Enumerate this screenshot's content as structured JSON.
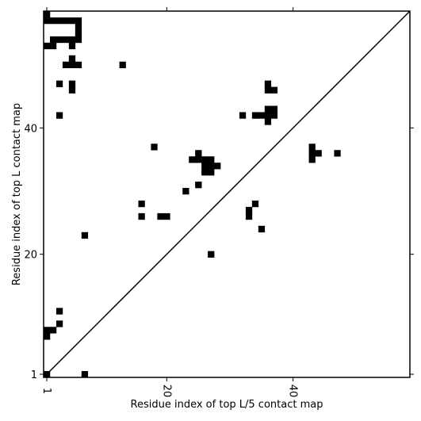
{
  "chart_data": {
    "type": "heatmap",
    "title": "",
    "xlabel": "Residue index of top L/5 contact map",
    "ylabel": "Residue index of top L contact map",
    "xlim": [
      0.5,
      58.5
    ],
    "ylim": [
      0.5,
      58.5
    ],
    "x_ticks": [
      1,
      20,
      40
    ],
    "x_tick_labels": [
      "1",
      "20",
      "40"
    ],
    "y_ticks": [
      1,
      20,
      40
    ],
    "y_tick_labels": [
      "1",
      "20",
      "40"
    ],
    "grid": false,
    "diagonal": true,
    "cell_color": "#000000",
    "background_color": "#ffffff",
    "cells": [
      [
        1,
        1
      ],
      [
        7,
        1
      ],
      [
        1,
        7
      ],
      [
        1,
        8
      ],
      [
        2,
        8
      ],
      [
        3,
        9
      ],
      [
        3,
        11
      ],
      [
        27,
        20
      ],
      [
        7,
        23
      ],
      [
        16,
        26
      ],
      [
        19,
        26
      ],
      [
        20,
        26
      ],
      [
        16,
        28
      ],
      [
        23,
        30
      ],
      [
        25,
        31
      ],
      [
        26,
        33
      ],
      [
        27,
        33
      ],
      [
        26,
        34
      ],
      [
        27,
        34
      ],
      [
        28,
        34
      ],
      [
        24,
        35
      ],
      [
        25,
        35
      ],
      [
        26,
        35
      ],
      [
        27,
        35
      ],
      [
        25,
        36
      ],
      [
        18,
        37
      ],
      [
        43,
        36
      ],
      [
        43,
        35
      ],
      [
        43,
        37
      ],
      [
        44,
        36
      ],
      [
        47,
        36
      ],
      [
        3,
        42
      ],
      [
        32,
        42
      ],
      [
        34,
        42
      ],
      [
        35,
        42
      ],
      [
        36,
        42
      ],
      [
        37,
        42
      ],
      [
        36,
        41
      ],
      [
        36,
        43
      ],
      [
        37,
        43
      ],
      [
        36,
        46
      ],
      [
        37,
        46
      ],
      [
        5,
        46
      ],
      [
        5,
        47
      ],
      [
        36,
        47
      ],
      [
        3,
        47
      ],
      [
        4,
        50
      ],
      [
        5,
        50
      ],
      [
        6,
        50
      ],
      [
        13,
        50
      ],
      [
        5,
        51
      ],
      [
        1,
        53
      ],
      [
        2,
        53
      ],
      [
        5,
        53
      ],
      [
        2,
        54
      ],
      [
        3,
        54
      ],
      [
        4,
        54
      ],
      [
        5,
        54
      ],
      [
        6,
        54
      ],
      [
        6,
        55
      ],
      [
        6,
        56
      ],
      [
        1,
        57
      ],
      [
        2,
        57
      ],
      [
        3,
        57
      ],
      [
        4,
        57
      ],
      [
        5,
        57
      ],
      [
        6,
        57
      ],
      [
        1,
        58
      ],
      [
        33,
        26
      ],
      [
        33,
        27
      ],
      [
        34,
        28
      ],
      [
        35,
        24
      ]
    ]
  }
}
